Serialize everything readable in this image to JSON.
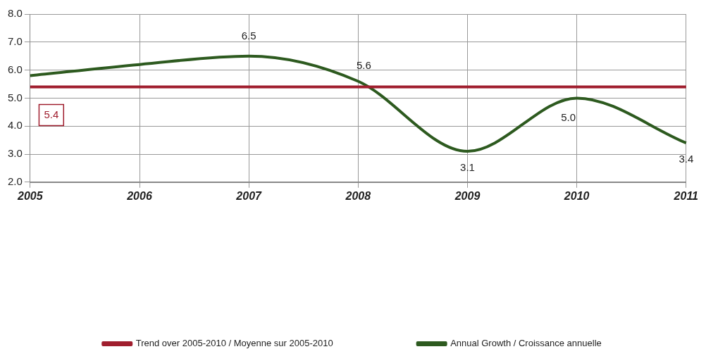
{
  "chart_data": {
    "type": "line",
    "categories": [
      "2005",
      "2006",
      "2007",
      "2008",
      "2009",
      "2010",
      "2011"
    ],
    "series": [
      {
        "name": "Trend over 2005-2010 / Moyenne sur 2005-2010",
        "color": "#a01e2e",
        "values": [
          5.4,
          5.4,
          5.4,
          5.4,
          5.4,
          5.4,
          5.4
        ],
        "value_labels": [
          "5.4",
          null,
          null,
          null,
          null,
          null,
          null
        ]
      },
      {
        "name": "Annual Growth / Croissance annuelle",
        "color": "#2d5a1f",
        "values": [
          5.8,
          6.2,
          6.5,
          5.6,
          3.1,
          5.0,
          3.4
        ],
        "value_labels": [
          null,
          null,
          "6.5",
          "5.6",
          "3.1",
          "5.0",
          "3.4"
        ]
      }
    ],
    "ylim": [
      2,
      8
    ],
    "yticks": [
      {
        "value": 2,
        "label": "2.0"
      },
      {
        "value": 3,
        "label": "3.0"
      },
      {
        "value": 4,
        "label": "4.0"
      },
      {
        "value": 5,
        "label": "5.0"
      },
      {
        "value": 6,
        "label": "6.0"
      },
      {
        "value": 7,
        "label": "7.0"
      },
      {
        "value": 8,
        "label": "8.0"
      }
    ],
    "grid": true,
    "legend": "bottom",
    "marker": "none",
    "line_style": "solid"
  }
}
